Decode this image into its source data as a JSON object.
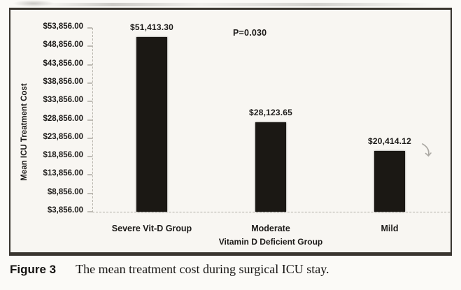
{
  "figure": {
    "caption_label": "Figure 3",
    "caption_text": "The mean treatment cost during surgical ICU stay."
  },
  "chart_data": {
    "type": "bar",
    "title": "",
    "categories": [
      "Severe Vit-D Group",
      "Moderate",
      "Mild"
    ],
    "values": [
      51413.3,
      28123.65,
      20414.12
    ],
    "value_labels": [
      "$51,413.30",
      "$28,123.65",
      "$20,414.12"
    ],
    "annotation": "P=0.030",
    "xlabel": "Vitamin D Deficient Group",
    "ylabel": "Mean ICU Treatment Cost",
    "ylim": [
      3856,
      53856
    ],
    "ytick_interval": 5000,
    "ytick_labels": [
      "$3,856.00",
      "$8,856.00",
      "$13,856.00",
      "$18,856.00",
      "$23,856.00",
      "$28,856.00",
      "$33,856.00",
      "$38,856.00",
      "$43,856.00",
      "$48,856.00",
      "$53,856.00"
    ],
    "bar_color": "#1b1814",
    "legend": "none",
    "grid": "off"
  },
  "colors": {
    "paper_background": "#f8f6f2",
    "figure_border": "#39352f",
    "axis_line": "#aeaba3",
    "text": "#1c1a18"
  }
}
